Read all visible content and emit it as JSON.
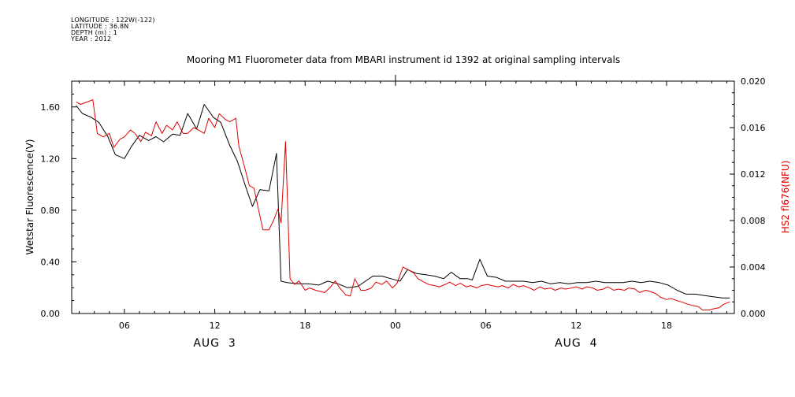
{
  "header": {
    "longitude": "LONGITUDE : 122W(-122)",
    "latitude": "LATITUDE : 36.8N",
    "depth": "DEPTH (m) : 1",
    "year": "YEAR : 2012"
  },
  "chart_data": {
    "type": "line",
    "title": "Mooring M1 Fluorometer data from MBARI instrument id 1392 at original sampling intervals",
    "x_ticks": [
      "06",
      "12",
      "18",
      "00",
      "06",
      "12",
      "18"
    ],
    "x_tick_hours": [
      6,
      12,
      18,
      24,
      30,
      36,
      42
    ],
    "x_range_hours": [
      2.5,
      46.5
    ],
    "date_labels": [
      {
        "label": "AUG  3",
        "hour": 12
      },
      {
        "label": "AUG  4",
        "hour": 36
      }
    ],
    "y_left": {
      "label": "Wetstar Fluorescence(V)",
      "range": [
        0,
        1.8
      ],
      "ticks": [
        "0.00",
        "0.40",
        "0.80",
        "1.20",
        "1.60"
      ],
      "tick_values": [
        0,
        0.4,
        0.8,
        1.2,
        1.6
      ]
    },
    "y_right": {
      "label": "HS2 fl676(NFU)",
      "range": [
        0,
        0.02
      ],
      "ticks": [
        "0.000",
        "0.004",
        "0.008",
        "0.012",
        "0.016",
        "0.020"
      ],
      "tick_values": [
        0,
        0.004,
        0.008,
        0.012,
        0.016,
        0.02
      ]
    },
    "series": [
      {
        "name": "Wetstar Fluorescence(V)",
        "axis": "left",
        "color": "#000000",
        "x": [
          2.8,
          3.2,
          3.8,
          4.3,
          4.9,
          5.4,
          6.0,
          6.5,
          7.0,
          7.6,
          8.1,
          8.6,
          9.2,
          9.7,
          10.2,
          10.8,
          11.3,
          11.9,
          12.4,
          13.0,
          13.5,
          14.0,
          14.5,
          15.0,
          15.6,
          16.1,
          16.4,
          16.8,
          17.5,
          18.2,
          18.9,
          19.5,
          20.2,
          20.8,
          21.5,
          22.0,
          22.5,
          23.1,
          23.7,
          24.3,
          24.8,
          25.4,
          26.0,
          26.6,
          27.2,
          27.7,
          28.3,
          28.8,
          29.1,
          29.6,
          30.1,
          30.7,
          31.3,
          31.9,
          32.5,
          33.1,
          33.7,
          34.3,
          34.9,
          35.5,
          36.1,
          36.7,
          37.3,
          37.9,
          38.5,
          39.1,
          39.7,
          40.3,
          40.9,
          41.5,
          42.1,
          42.7,
          43.3,
          43.9,
          44.5,
          45.1,
          45.7,
          46.2
        ],
        "y": [
          1.61,
          1.55,
          1.52,
          1.48,
          1.37,
          1.23,
          1.2,
          1.3,
          1.38,
          1.34,
          1.37,
          1.33,
          1.39,
          1.38,
          1.55,
          1.43,
          1.62,
          1.52,
          1.48,
          1.3,
          1.18,
          1.0,
          0.83,
          0.96,
          0.95,
          1.24,
          0.25,
          0.24,
          0.23,
          0.23,
          0.22,
          0.25,
          0.23,
          0.2,
          0.21,
          0.25,
          0.29,
          0.29,
          0.27,
          0.25,
          0.34,
          0.31,
          0.3,
          0.29,
          0.27,
          0.32,
          0.27,
          0.27,
          0.26,
          0.42,
          0.29,
          0.28,
          0.25,
          0.25,
          0.25,
          0.24,
          0.25,
          0.23,
          0.24,
          0.23,
          0.24,
          0.24,
          0.25,
          0.24,
          0.24,
          0.24,
          0.25,
          0.24,
          0.25,
          0.24,
          0.22,
          0.18,
          0.15,
          0.15,
          0.14,
          0.13,
          0.12,
          0.12
        ]
      },
      {
        "name": "HS2 fl676(NFU)",
        "axis": "right",
        "color": "#e00000",
        "x": [
          2.8,
          3.1,
          3.5,
          3.9,
          4.2,
          4.6,
          5.0,
          5.3,
          5.7,
          6.0,
          6.4,
          6.7,
          7.1,
          7.4,
          7.8,
          8.1,
          8.5,
          8.8,
          9.2,
          9.5,
          9.9,
          10.2,
          10.6,
          10.9,
          11.3,
          11.6,
          12.0,
          12.3,
          12.7,
          13.0,
          13.4,
          13.6,
          14.0,
          14.3,
          14.6,
          14.9,
          15.2,
          15.6,
          15.9,
          16.2,
          16.4,
          16.7,
          17.0,
          17.3,
          17.6,
          18.0,
          18.3,
          18.7,
          19.0,
          19.3,
          19.7,
          20.0,
          20.3,
          20.7,
          21.0,
          21.3,
          21.7,
          22.0,
          22.4,
          22.7,
          23.1,
          23.4,
          23.8,
          24.1,
          24.5,
          24.8,
          25.2,
          25.5,
          25.9,
          26.2,
          26.6,
          26.9,
          27.3,
          27.6,
          28.0,
          28.3,
          28.7,
          29.0,
          29.4,
          29.7,
          30.1,
          30.4,
          30.8,
          31.1,
          31.5,
          31.8,
          32.2,
          32.5,
          32.9,
          33.2,
          33.6,
          33.9,
          34.3,
          34.6,
          35.0,
          35.3,
          35.7,
          36.0,
          36.4,
          36.7,
          37.1,
          37.4,
          37.8,
          38.1,
          38.5,
          38.8,
          39.2,
          39.5,
          39.9,
          40.2,
          40.6,
          40.9,
          41.3,
          41.6,
          42.0,
          42.3,
          42.7,
          43.0,
          43.4,
          43.7,
          44.1,
          44.4,
          44.8,
          45.1,
          45.5,
          45.8,
          46.2
        ],
        "y": [
          0.0182,
          0.018,
          0.0182,
          0.0184,
          0.0155,
          0.0152,
          0.0155,
          0.0143,
          0.015,
          0.0152,
          0.0158,
          0.0155,
          0.0148,
          0.0156,
          0.0153,
          0.0165,
          0.0155,
          0.0162,
          0.0158,
          0.0165,
          0.0155,
          0.0155,
          0.016,
          0.0158,
          0.0155,
          0.0168,
          0.016,
          0.0172,
          0.0167,
          0.0165,
          0.0168,
          0.0144,
          0.0125,
          0.011,
          0.0108,
          0.009,
          0.0072,
          0.0072,
          0.008,
          0.009,
          0.0078,
          0.0148,
          0.003,
          0.0025,
          0.0028,
          0.002,
          0.0022,
          0.002,
          0.0019,
          0.0018,
          0.0023,
          0.0028,
          0.0022,
          0.0016,
          0.0015,
          0.003,
          0.002,
          0.002,
          0.0022,
          0.0027,
          0.0025,
          0.0028,
          0.0022,
          0.0026,
          0.004,
          0.0038,
          0.0035,
          0.003,
          0.0027,
          0.0025,
          0.0024,
          0.0023,
          0.0025,
          0.0027,
          0.0024,
          0.0026,
          0.0023,
          0.0024,
          0.0022,
          0.0024,
          0.0025,
          0.0024,
          0.0023,
          0.0024,
          0.0022,
          0.0025,
          0.0023,
          0.0024,
          0.0022,
          0.002,
          0.0023,
          0.0021,
          0.0022,
          0.002,
          0.0022,
          0.0021,
          0.0022,
          0.0023,
          0.0021,
          0.0023,
          0.0022,
          0.002,
          0.0021,
          0.0023,
          0.002,
          0.0021,
          0.002,
          0.0022,
          0.0021,
          0.0018,
          0.002,
          0.0019,
          0.0017,
          0.0014,
          0.0012,
          0.0013,
          0.0011,
          0.001,
          0.0008,
          0.0007,
          0.0006,
          0.0003,
          0.0003,
          0.0004,
          0.0005,
          0.0008,
          0.001
        ]
      }
    ]
  }
}
